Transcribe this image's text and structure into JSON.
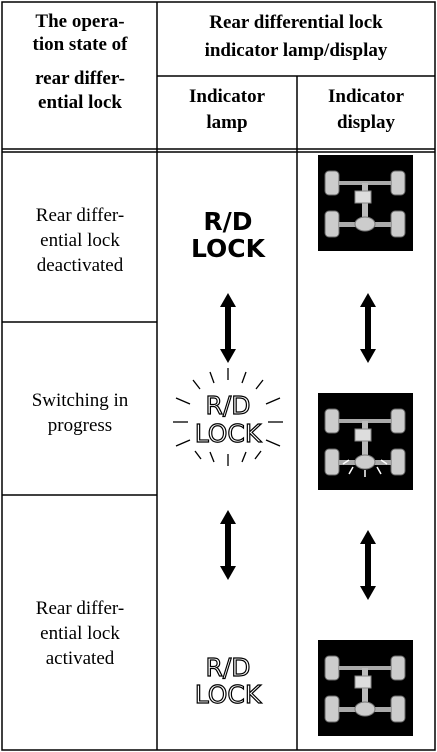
{
  "table": {
    "header": {
      "state": [
        "The opera-",
        "tion state of",
        "rear differ-",
        "ential lock"
      ],
      "group": [
        "Rear differential lock",
        "indicator lamp/display"
      ],
      "lamp": [
        "Indicator",
        "lamp"
      ],
      "display": [
        "Indicator",
        "display"
      ]
    },
    "rows": [
      {
        "state": [
          "Rear differ-",
          "ential lock",
          "deactivated"
        ],
        "lamp": [
          "R/D",
          "LOCK"
        ]
      },
      {
        "state": [
          "Switching in",
          "progress"
        ],
        "lamp": [
          "R/D",
          "LOCK"
        ]
      },
      {
        "state": [
          "Rear differ-",
          "ential lock",
          "activated"
        ],
        "lamp": [
          "R/D",
          "LOCK"
        ]
      }
    ]
  }
}
